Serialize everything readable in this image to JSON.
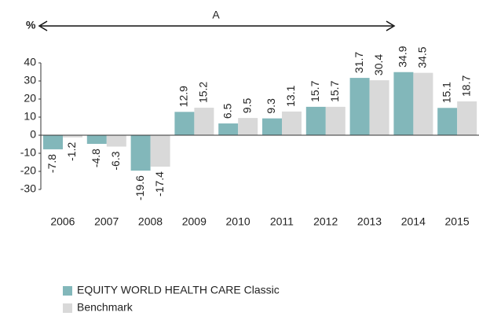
{
  "chart_data": {
    "type": "bar",
    "unit_label": "%",
    "annotation": "A",
    "categories": [
      "2006",
      "2007",
      "2008",
      "2009",
      "2010",
      "2011",
      "2012",
      "2013",
      "2014",
      "2015"
    ],
    "series": [
      {
        "name": "EQUITY WORLD HEALTH CARE Classic",
        "color": "#82b7ba",
        "values": [
          -7.8,
          -4.8,
          -19.6,
          12.9,
          6.5,
          9.3,
          15.7,
          31.7,
          34.9,
          15.1
        ]
      },
      {
        "name": "Benchmark",
        "color": "#d9d9d9",
        "values": [
          -1.2,
          -6.3,
          -17.4,
          15.2,
          9.5,
          13.1,
          15.7,
          30.4,
          34.5,
          18.7
        ]
      }
    ],
    "ylim": [
      -30,
      40
    ],
    "yticks": [
      -30,
      -20,
      -10,
      0,
      10,
      20,
      30,
      40
    ],
    "grid": false
  }
}
